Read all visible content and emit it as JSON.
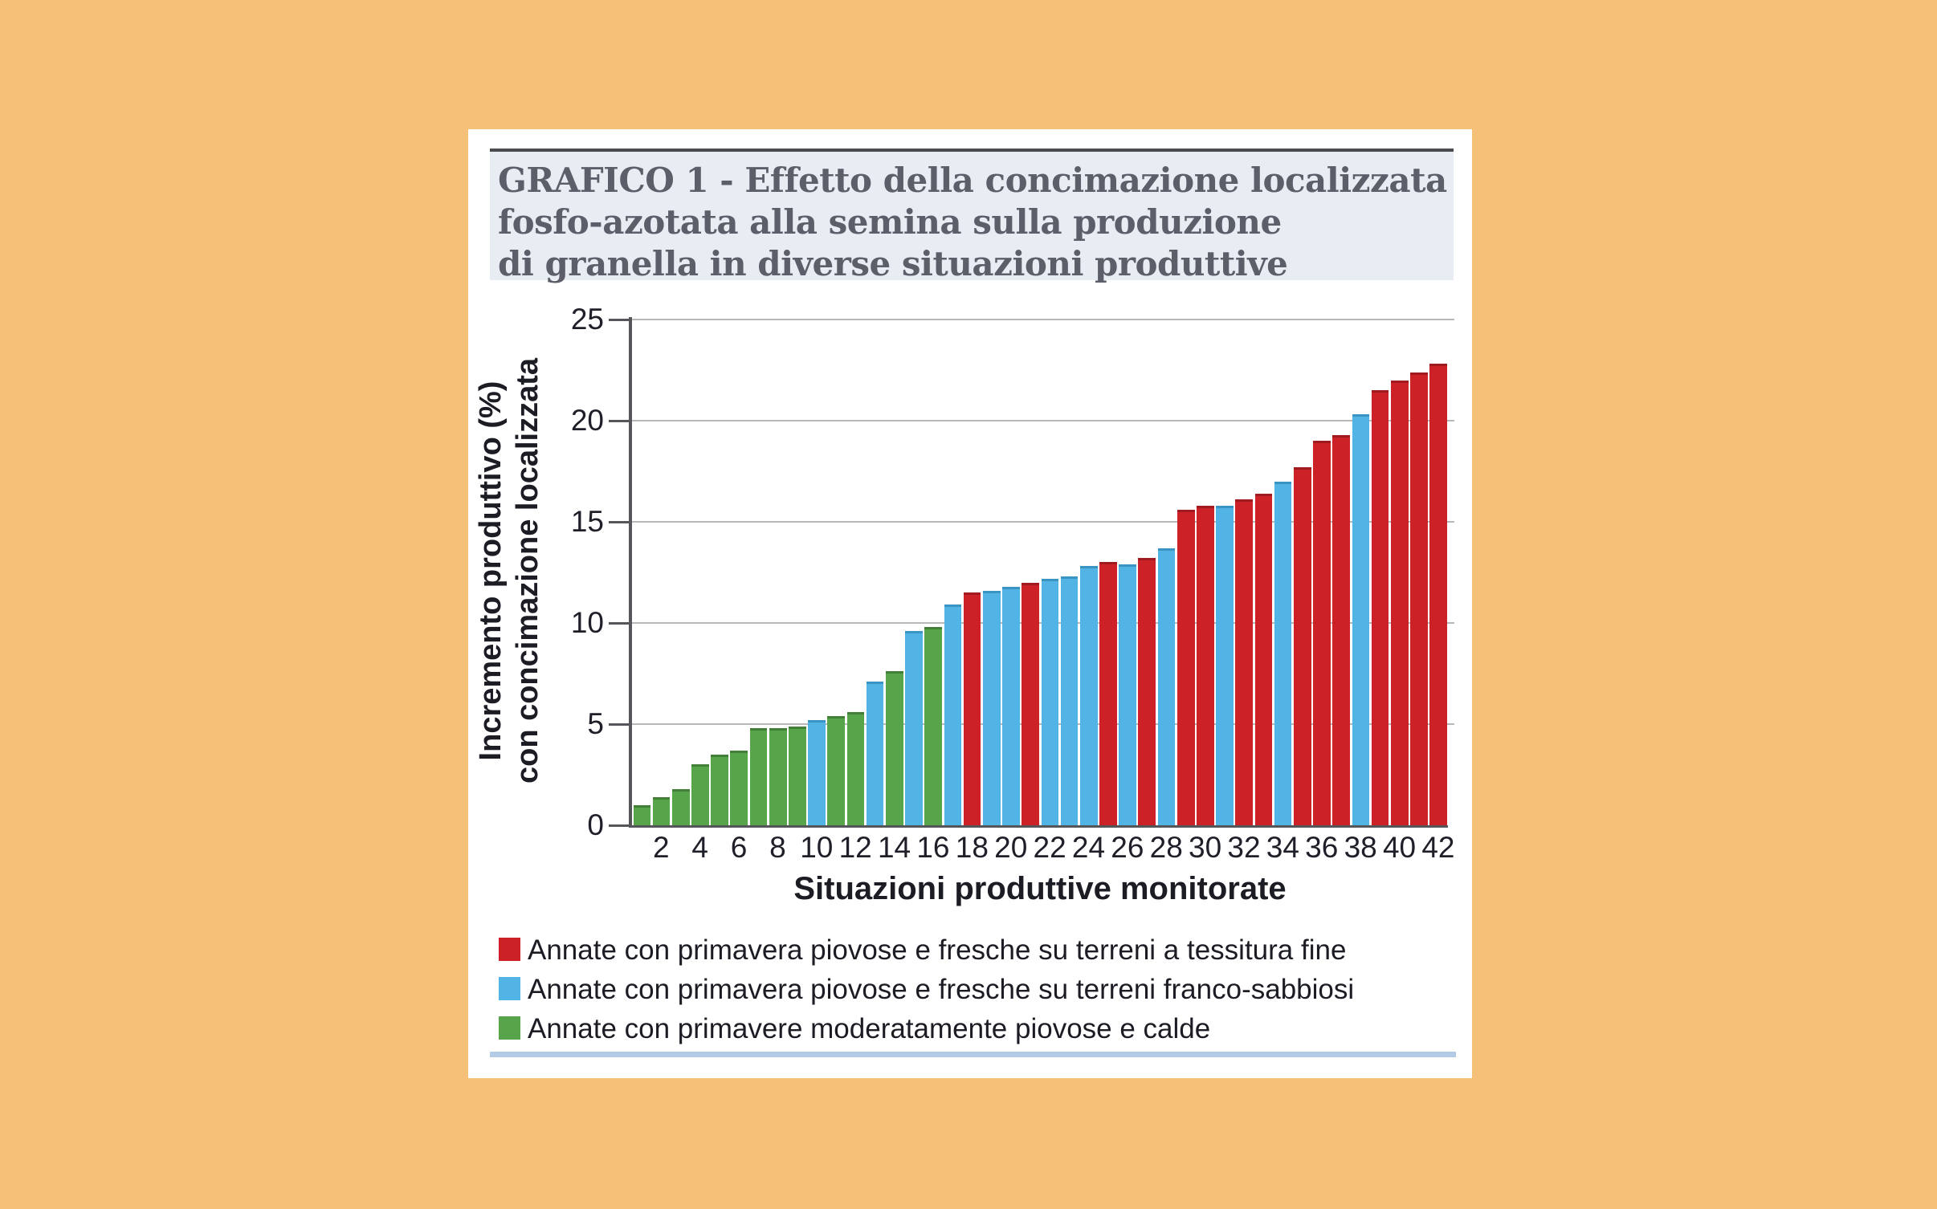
{
  "figure": {
    "title_lines": [
      "GRAFICO 1 - Effetto della concimazione localizzata",
      "fosfo-azotata alla semina sulla produzione",
      "di granella in diverse situazioni produttive"
    ]
  },
  "colors": {
    "page_background": "#f5c078",
    "panel_background": "#ffffff",
    "title_block_background": "#e8edf4",
    "title_text": "#5c5f6a",
    "axis_line": "#55565a",
    "gridline": "#b8b8b8",
    "tick_text": "#1e1f28",
    "bottom_rule": "#b4cbe6"
  },
  "chart_data": {
    "type": "bar",
    "title": "GRAFICO 1 - Effetto della concimazione localizzata fosfo-azotata alla semina sulla produzione di granella in diverse situazioni produttive",
    "xlabel": "Situazioni produttive monitorate",
    "ylabel_lines": [
      "Incremento produttivo (%)",
      "con concimazione localizzata"
    ],
    "ylabel": "Incremento produttivo (%) con concimazione localizzata",
    "ylim": [
      0,
      25
    ],
    "yticks": [
      0,
      5,
      10,
      15,
      20,
      25
    ],
    "xticks": [
      2,
      4,
      6,
      8,
      10,
      12,
      14,
      16,
      18,
      20,
      22,
      24,
      26,
      28,
      30,
      32,
      34,
      36,
      38,
      40,
      42
    ],
    "grid": "horizontal",
    "legend_position": "bottom",
    "x": [
      1,
      2,
      3,
      4,
      5,
      6,
      7,
      8,
      9,
      10,
      11,
      12,
      13,
      14,
      15,
      16,
      17,
      18,
      19,
      20,
      21,
      22,
      23,
      24,
      25,
      26,
      27,
      28,
      29,
      30,
      31,
      32,
      33,
      34,
      35,
      36,
      37,
      38,
      39,
      40,
      41,
      42
    ],
    "values": [
      1.0,
      1.4,
      1.8,
      3.0,
      3.5,
      3.7,
      4.8,
      4.8,
      4.9,
      5.2,
      5.4,
      5.6,
      7.1,
      7.6,
      9.6,
      9.8,
      10.9,
      11.5,
      11.6,
      11.8,
      12.0,
      12.2,
      12.3,
      12.8,
      13.0,
      12.9,
      13.2,
      13.7,
      15.6,
      15.8,
      15.8,
      16.1,
      16.4,
      17.0,
      17.7,
      19.0,
      19.3,
      20.3,
      21.5,
      22.0,
      22.4,
      22.8
    ],
    "groups": [
      "green",
      "green",
      "green",
      "green",
      "green",
      "green",
      "green",
      "green",
      "green",
      "blue",
      "green",
      "green",
      "blue",
      "green",
      "blue",
      "green",
      "blue",
      "red",
      "blue",
      "blue",
      "red",
      "blue",
      "blue",
      "blue",
      "red",
      "blue",
      "red",
      "blue",
      "red",
      "red",
      "blue",
      "red",
      "red",
      "blue",
      "red",
      "red",
      "red",
      "blue",
      "red",
      "red",
      "red",
      "red"
    ],
    "series_colors": {
      "red": {
        "fill": "#cc2127",
        "edge": "#a01a1f"
      },
      "blue": {
        "fill": "#52b4e4",
        "edge": "#3b95c3"
      },
      "green": {
        "fill": "#58a44a",
        "edge": "#427f37"
      }
    },
    "legend": [
      {
        "color_key": "red",
        "label": "Annate con primavera piovose e fresche su terreni a tessitura fine"
      },
      {
        "color_key": "blue",
        "label": "Annate con primavera piovose e fresche su terreni franco-sabbiosi"
      },
      {
        "color_key": "green",
        "label": "Annate con primavere moderatamente piovose e calde"
      }
    ]
  }
}
